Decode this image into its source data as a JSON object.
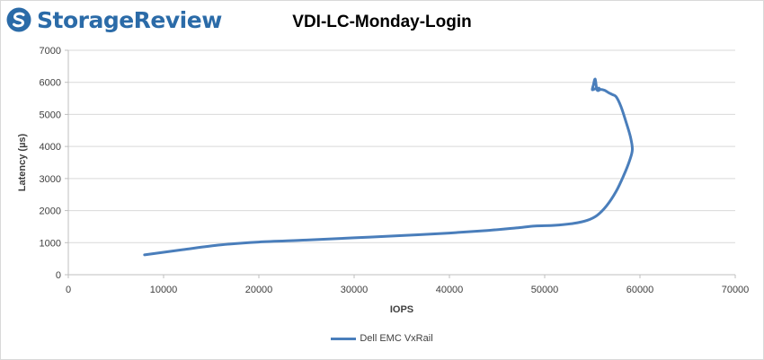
{
  "brand": {
    "logo_text": "StorageReview",
    "logo_color": "#2b6ba8"
  },
  "chart_data": {
    "type": "line",
    "title": "VDI-LC-Monday-Login",
    "xlabel": "IOPS",
    "ylabel": "Latency (µs)",
    "xlim": [
      0,
      70000
    ],
    "ylim": [
      0,
      7000
    ],
    "x_ticks": [
      "0",
      "10000",
      "20000",
      "30000",
      "40000",
      "50000",
      "60000",
      "70000"
    ],
    "y_ticks": [
      "0",
      "1000",
      "2000",
      "3000",
      "4000",
      "5000",
      "6000",
      "7000"
    ],
    "grid": "horizontal",
    "legend_position": "bottom",
    "series": [
      {
        "name": "Dell EMC VxRail",
        "color": "#4a7ebb",
        "points": [
          [
            8000,
            620
          ],
          [
            12000,
            780
          ],
          [
            16000,
            930
          ],
          [
            20000,
            1020
          ],
          [
            25000,
            1080
          ],
          [
            30000,
            1150
          ],
          [
            35000,
            1220
          ],
          [
            40000,
            1300
          ],
          [
            44000,
            1380
          ],
          [
            47000,
            1460
          ],
          [
            49000,
            1520
          ],
          [
            51000,
            1540
          ],
          [
            53000,
            1600
          ],
          [
            54500,
            1700
          ],
          [
            55500,
            1850
          ],
          [
            56500,
            2150
          ],
          [
            57500,
            2600
          ],
          [
            58300,
            3100
          ],
          [
            58900,
            3550
          ],
          [
            59200,
            3900
          ],
          [
            59000,
            4300
          ],
          [
            58500,
            4800
          ],
          [
            58000,
            5250
          ],
          [
            57500,
            5550
          ],
          [
            57100,
            5620
          ],
          [
            56700,
            5680
          ],
          [
            56300,
            5750
          ],
          [
            55900,
            5780
          ],
          [
            55500,
            5760
          ],
          [
            55300,
            6100
          ],
          [
            55100,
            5900
          ],
          [
            55000,
            5770
          ],
          [
            55300,
            5800
          ],
          [
            55700,
            5820
          ]
        ]
      }
    ]
  }
}
